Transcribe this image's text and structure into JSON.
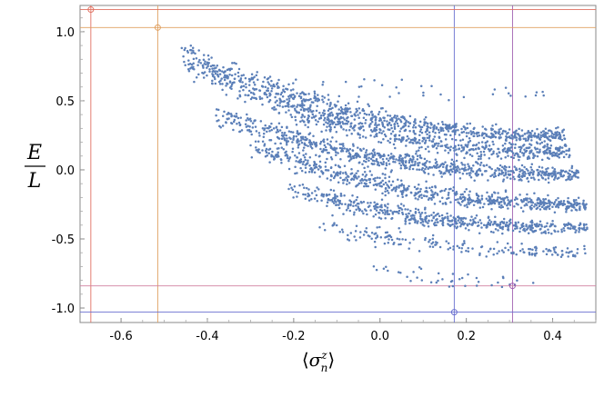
{
  "chart_data": {
    "type": "scatter",
    "title": "",
    "xlabel_parts": {
      "open": "⟨",
      "sigma": "σ",
      "sup": "z",
      "sub": "n",
      "close": "⟩"
    },
    "ylabel_parts": {
      "numerator": "E",
      "denominator": "L"
    },
    "xlim": [
      -0.695,
      0.5
    ],
    "ylim": [
      -1.105,
      1.19
    ],
    "xticks": [
      -0.6,
      -0.4,
      -0.2,
      0.0,
      0.2,
      0.4
    ],
    "xtick_labels": [
      "-0.6",
      "-0.4",
      "-0.2",
      "0.0",
      "0.2",
      "0.4"
    ],
    "yticks": [
      -1.0,
      -0.5,
      0.0,
      0.5,
      1.0
    ],
    "ytick_labels": [
      "-1.0",
      "-0.5",
      "0.0",
      "0.5",
      "1.0"
    ],
    "grid": false,
    "point_color": "#5b7fb8",
    "bands": [
      {
        "x_start": -0.46,
        "x_end": 0.43,
        "y_start": 0.86,
        "y_end": 0.25,
        "spread": 0.035,
        "count": 650
      },
      {
        "x_start": -0.45,
        "x_end": 0.44,
        "y_start": 0.78,
        "y_end": 0.13,
        "spread": 0.04,
        "count": 700
      },
      {
        "x_start": -0.38,
        "x_end": 0.46,
        "y_start": 0.4,
        "y_end": -0.03,
        "spread": 0.035,
        "count": 750
      },
      {
        "x_start": -0.3,
        "x_end": 0.48,
        "y_start": 0.18,
        "y_end": -0.25,
        "spread": 0.035,
        "count": 650
      },
      {
        "x_start": -0.22,
        "x_end": 0.48,
        "y_start": -0.12,
        "y_end": -0.42,
        "spread": 0.03,
        "count": 520
      },
      {
        "x_start": -0.14,
        "x_end": 0.48,
        "y_start": -0.38,
        "y_end": -0.6,
        "spread": 0.03,
        "count": 180
      },
      {
        "x_start": -0.06,
        "x_end": 0.36,
        "y_start": -0.66,
        "y_end": -0.82,
        "spread": 0.03,
        "count": 40
      },
      {
        "x_start": -0.32,
        "x_end": 0.4,
        "y_start": 0.72,
        "y_end": 0.55,
        "spread": 0.05,
        "count": 35
      }
    ],
    "reference_points": [
      {
        "name": "red",
        "x": -0.67,
        "y": 1.16,
        "color": "#e07060"
      },
      {
        "name": "orange",
        "x": -0.515,
        "y": 1.03,
        "color": "#e0a060"
      },
      {
        "name": "blue",
        "x": 0.172,
        "y": -1.03,
        "color": "#6a70d0"
      },
      {
        "name": "purple",
        "x": 0.307,
        "y": -0.84,
        "color": "#a060b0"
      }
    ],
    "reference_lines": {
      "vertical": [
        {
          "x": -0.67,
          "color": "#e07060"
        },
        {
          "x": -0.515,
          "color": "#e0a060"
        },
        {
          "x": 0.172,
          "color": "#6a70d0"
        },
        {
          "x": 0.307,
          "color": "#a060b0"
        }
      ],
      "horizontal": [
        {
          "y": 1.16,
          "color": "#e07060"
        },
        {
          "y": 1.03,
          "color": "#e0a060"
        },
        {
          "y": -0.84,
          "color": "#d080a0"
        },
        {
          "y": -1.03,
          "color": "#6a70d0"
        }
      ]
    }
  }
}
